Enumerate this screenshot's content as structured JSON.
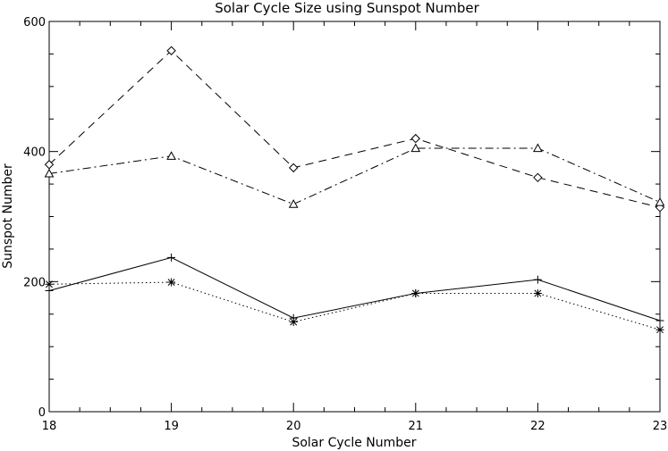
{
  "chart_data": {
    "type": "line",
    "title": "Solar Cycle Size using Sunspot Number",
    "xlabel": "Solar Cycle Number",
    "ylabel": "Sunspot Number",
    "x": [
      18,
      19,
      20,
      21,
      22,
      23
    ],
    "xlim": [
      18,
      23
    ],
    "ylim": [
      0,
      600
    ],
    "x_ticks": [
      "18",
      "19",
      "20",
      "21",
      "22",
      "23"
    ],
    "y_ticks": [
      "0",
      "200",
      "400",
      "600"
    ],
    "grid": false,
    "legend": "none",
    "series": [
      {
        "line_style": "solid",
        "marker": "plus",
        "color": "#000000",
        "values": [
          186,
          237,
          144,
          182,
          203,
          140
        ]
      },
      {
        "line_style": "dotted",
        "marker": "asterisk",
        "color": "#000000",
        "values": [
          196,
          199,
          138,
          182,
          182,
          126
        ]
      },
      {
        "line_style": "dashed",
        "marker": "diamond",
        "color": "#000000",
        "values": [
          380,
          555,
          375,
          420,
          360,
          314
        ]
      },
      {
        "line_style": "dash-dot",
        "marker": "triangle",
        "color": "#000000",
        "values": [
          366,
          393,
          319,
          405,
          405,
          322
        ]
      }
    ]
  }
}
